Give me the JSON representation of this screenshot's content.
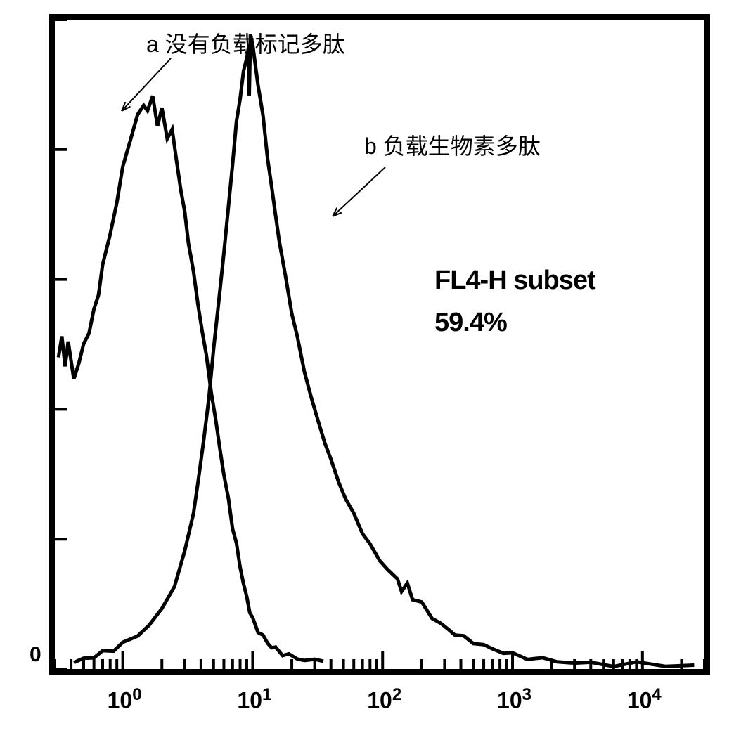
{
  "chart": {
    "type": "histogram",
    "background_color": "#ffffff",
    "border_color": "#000000",
    "border_width": 8,
    "stroke_color": "#000000",
    "stroke_width": 5,
    "xaxis": {
      "scale": "log",
      "min": 0.3,
      "max": 30000,
      "ticks": [
        1,
        10,
        100,
        1000,
        10000
      ],
      "tick_labels": [
        "10",
        "10",
        "10",
        "10",
        "10"
      ],
      "tick_superscripts": [
        "0",
        "1",
        "2",
        "3",
        "4"
      ],
      "minor_ticks": true
    },
    "yaxis": {
      "scale": "linear",
      "min": 0,
      "max": 100,
      "zero_label": "0"
    },
    "series_a": {
      "label": "a 没有负载标记多肽",
      "points": [
        [
          0.32,
          48
        ],
        [
          0.34,
          51
        ],
        [
          0.36,
          47
        ],
        [
          0.38,
          50
        ],
        [
          0.42,
          45
        ],
        [
          0.46,
          47
        ],
        [
          0.5,
          50
        ],
        [
          0.55,
          52
        ],
        [
          0.6,
          55
        ],
        [
          0.65,
          58
        ],
        [
          0.7,
          62
        ],
        [
          0.8,
          67
        ],
        [
          0.9,
          72
        ],
        [
          1.0,
          77
        ],
        [
          1.15,
          82
        ],
        [
          1.3,
          85
        ],
        [
          1.45,
          87
        ],
        [
          1.55,
          86
        ],
        [
          1.7,
          88
        ],
        [
          1.85,
          84
        ],
        [
          2.0,
          86
        ],
        [
          2.2,
          82
        ],
        [
          2.4,
          83
        ],
        [
          2.6,
          78
        ],
        [
          2.8,
          74
        ],
        [
          3.0,
          70
        ],
        [
          3.2,
          66
        ],
        [
          3.5,
          61
        ],
        [
          3.8,
          56
        ],
        [
          4.1,
          52
        ],
        [
          4.4,
          48
        ],
        [
          4.8,
          43
        ],
        [
          5.2,
          38
        ],
        [
          5.6,
          34
        ],
        [
          6.0,
          30
        ],
        [
          6.5,
          26
        ],
        [
          7.0,
          22
        ],
        [
          7.5,
          19
        ],
        [
          8.0,
          16
        ],
        [
          8.5,
          13
        ],
        [
          9.0,
          11
        ],
        [
          9.5,
          9
        ],
        [
          10.0,
          7.5
        ],
        [
          11.0,
          6
        ],
        [
          12.0,
          5
        ],
        [
          13.0,
          4
        ],
        [
          14.0,
          3.5
        ],
        [
          15.0,
          3
        ],
        [
          17.0,
          2.5
        ],
        [
          19.0,
          2
        ],
        [
          22.0,
          1.7
        ],
        [
          25.0,
          1.4
        ],
        [
          30.0,
          1.2
        ],
        [
          35.0,
          1.2
        ]
      ]
    },
    "series_b": {
      "label": "b 负载生物素多肽",
      "points": [
        [
          0.42,
          1
        ],
        [
          0.5,
          1.5
        ],
        [
          0.6,
          2
        ],
        [
          0.7,
          2.5
        ],
        [
          0.85,
          3
        ],
        [
          1.0,
          4
        ],
        [
          1.3,
          5
        ],
        [
          1.6,
          7
        ],
        [
          2.0,
          9
        ],
        [
          2.5,
          13
        ],
        [
          3.0,
          18
        ],
        [
          3.5,
          24
        ],
        [
          3.8,
          29
        ],
        [
          4.2,
          35
        ],
        [
          4.6,
          42
        ],
        [
          5.0,
          49
        ],
        [
          5.5,
          57
        ],
        [
          6.0,
          64
        ],
        [
          6.5,
          71
        ],
        [
          7.0,
          78
        ],
        [
          7.5,
          84
        ],
        [
          8.0,
          88
        ],
        [
          8.5,
          92
        ],
        [
          9.0,
          94
        ],
        [
          9.3,
          96
        ],
        [
          9.4,
          88
        ],
        [
          9.6,
          98
        ],
        [
          10.0,
          96
        ],
        [
          10.5,
          93
        ],
        [
          11.0,
          90
        ],
        [
          12.0,
          85
        ],
        [
          13.0,
          79
        ],
        [
          14.0,
          74
        ],
        [
          15.0,
          70
        ],
        [
          16.0,
          66
        ],
        [
          18.0,
          60
        ],
        [
          20.0,
          55
        ],
        [
          22.0,
          51
        ],
        [
          25.0,
          46
        ],
        [
          28.0,
          42
        ],
        [
          32.0,
          38
        ],
        [
          36.0,
          35
        ],
        [
          40.0,
          32
        ],
        [
          46.0,
          29
        ],
        [
          52.0,
          26
        ],
        [
          60.0,
          24
        ],
        [
          70.0,
          21
        ],
        [
          80.0,
          19
        ],
        [
          95.0,
          17
        ],
        [
          110.0,
          15
        ],
        [
          130.0,
          14
        ],
        [
          140.0,
          12
        ],
        [
          155.0,
          13
        ],
        [
          170.0,
          11
        ],
        [
          200.0,
          10
        ],
        [
          240.0,
          8
        ],
        [
          280.0,
          7
        ],
        [
          320.0,
          6
        ],
        [
          360.0,
          5.5
        ],
        [
          420.0,
          4.8
        ],
        [
          500.0,
          4.2
        ],
        [
          600.0,
          3.6
        ],
        [
          700.0,
          3.1
        ],
        [
          850.0,
          2.6
        ],
        [
          1000.0,
          2.2
        ],
        [
          1300.0,
          1.8
        ],
        [
          1700.0,
          1.5
        ],
        [
          2200.0,
          1.2
        ],
        [
          3000.0,
          1
        ],
        [
          4000.0,
          0.8
        ],
        [
          6000.0,
          0.7
        ],
        [
          9000.0,
          0.8
        ],
        [
          15000.0,
          0.6
        ],
        [
          25000.0,
          0.6
        ]
      ]
    },
    "arrows": {
      "stroke_color": "#000000",
      "stroke_width": 2,
      "arrow_a": {
        "from": [
          165,
          55
        ],
        "to": [
          95,
          130
        ]
      },
      "arrow_b": {
        "from": [
          470,
          210
        ],
        "to": [
          395,
          280
        ]
      }
    },
    "subset_annotation": {
      "label": "FL4-H subset",
      "value": "59.4%",
      "fontsize": 38,
      "font_weight": 900
    }
  }
}
